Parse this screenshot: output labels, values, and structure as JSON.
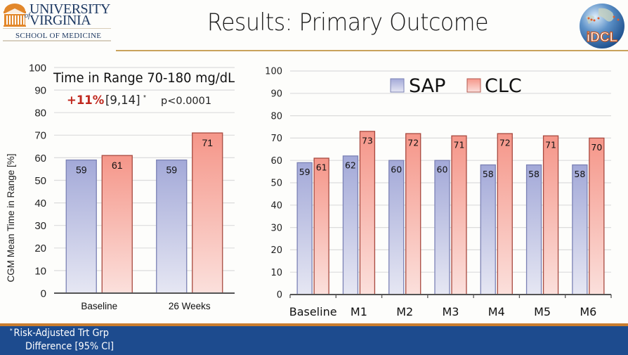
{
  "header": {
    "title": "Results: Primary Outcome",
    "left_logo": {
      "line1": "UNIVERSITY",
      "of": "of",
      "line2": "VIRGINIA",
      "school": "SCHOOL OF MEDICINE"
    },
    "right_logo": {
      "text": "iDCL"
    }
  },
  "colors": {
    "sap": "#a7addb",
    "clc": "#f49b8f",
    "accent_red": "#c0281e",
    "title_rule": "#c9a25c",
    "footer_bg": "#1d4b8e",
    "footer_rule": "#c97d2e"
  },
  "annotation": {
    "title": "Time in Range 70-180 mg/dL",
    "effect": "+11%",
    "ci": "[9,14]",
    "ci_mark": "*",
    "p_value": "p<0.0001"
  },
  "footer": {
    "asterisk": "*",
    "line1": "Risk-Adjusted Trt Grp",
    "line2": "Difference [95% CI]"
  },
  "chart_data": [
    {
      "type": "bar",
      "title": "Time in Range 70-180 mg/dL",
      "ylabel": "CGM Mean Time in Range [%]",
      "xlabel": "",
      "categories": [
        "Baseline",
        "26 Weeks"
      ],
      "series": [
        {
          "name": "SAP",
          "values": [
            59,
            59
          ]
        },
        {
          "name": "CLC",
          "values": [
            61,
            71
          ]
        }
      ],
      "ylim": [
        0,
        100
      ],
      "yticks": [
        0,
        10,
        20,
        30,
        40,
        50,
        60,
        70,
        80,
        90,
        100
      ],
      "grid": true,
      "legend": "none"
    },
    {
      "type": "bar",
      "title": "",
      "ylabel": "",
      "xlabel": "",
      "categories": [
        "Baseline",
        "M1",
        "M2",
        "M3",
        "M4",
        "M5",
        "M6"
      ],
      "series": [
        {
          "name": "SAP",
          "values": [
            59,
            62,
            60,
            60,
            58,
            58,
            58
          ]
        },
        {
          "name": "CLC",
          "values": [
            61,
            73,
            72,
            71,
            72,
            71,
            70
          ]
        }
      ],
      "ylim": [
        0,
        100
      ],
      "yticks": [
        0,
        10,
        20,
        30,
        40,
        50,
        60,
        70,
        80,
        90,
        100
      ],
      "grid": true,
      "legend": "top-center"
    }
  ]
}
